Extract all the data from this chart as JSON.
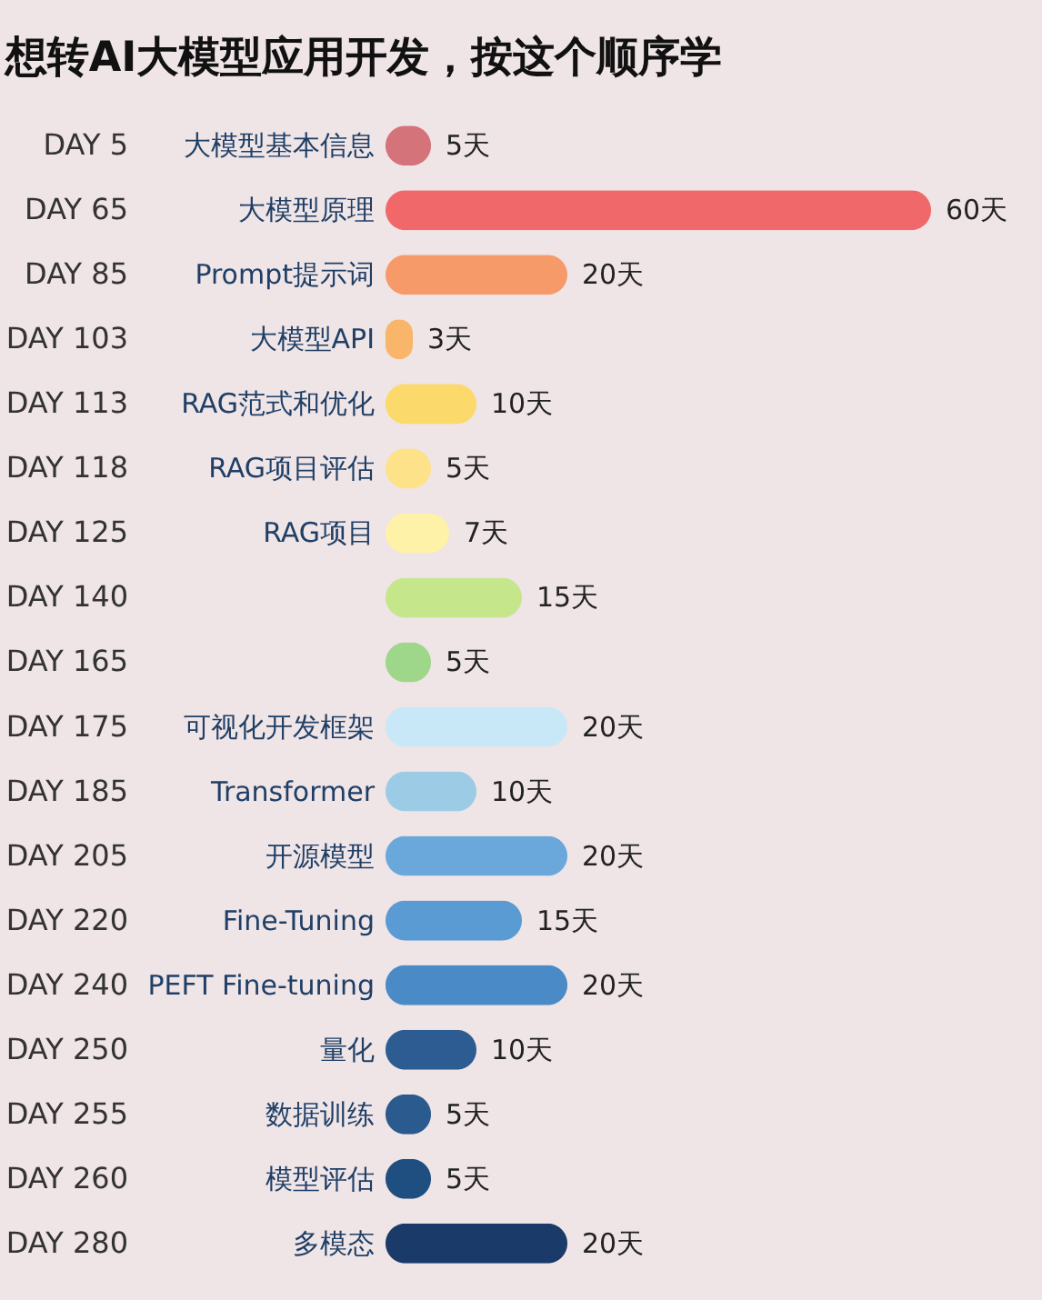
{
  "chart_data": {
    "type": "bar",
    "orientation": "horizontal",
    "title": "想转AI大模型应用开发，按这个顺序学",
    "categories": [
      "DAY 5",
      "DAY 65",
      "DAY 85",
      "DAY 103",
      "DAY 113",
      "DAY 118",
      "DAY 125",
      "DAY 140",
      "DAY 165",
      "DAY 175",
      "DAY 185",
      "DAY 205",
      "DAY 220",
      "DAY 240",
      "DAY 250",
      "DAY 255",
      "DAY 260",
      "DAY 280"
    ],
    "values": [
      5,
      60,
      20,
      3,
      10,
      5,
      7,
      15,
      5,
      20,
      10,
      20,
      15,
      20,
      10,
      5,
      5,
      20
    ],
    "colors": [
      "#d4737a",
      "#f0686a",
      "#f79a6a",
      "#f9b56a",
      "#fbd96a",
      "#fde28a",
      "#fdf2a8",
      "#c6e68c",
      "#9ed68a",
      "#c8e8f8",
      "#9ccbe6",
      "#6aa8dc",
      "#5b9bd4",
      "#4a8ac6",
      "#2c5c92",
      "#2a5a8e",
      "#1f4e80",
      "#1a3a6a"
    ],
    "value_labels": [
      "5天",
      "60天",
      "20天",
      "3天",
      "10天",
      "5天",
      "7天",
      "15天",
      "5天",
      "20天",
      "10天",
      "20天",
      "15天",
      "20天",
      "10天",
      "5天",
      "5天",
      "20天"
    ],
    "annotations": [
      "大模型基本信息",
      "大模型原理",
      "Prompt提示词",
      "大模型API",
      "RAG范式和优化",
      "RAG项目评估",
      "RAG项目",
      null,
      null,
      "可视化开发框架",
      "Transformer",
      "开源模型",
      "Fine-Tuning",
      "PEFT Fine-tuning",
      "量化",
      "数据训练",
      "模型评估",
      "多模态"
    ]
  }
}
